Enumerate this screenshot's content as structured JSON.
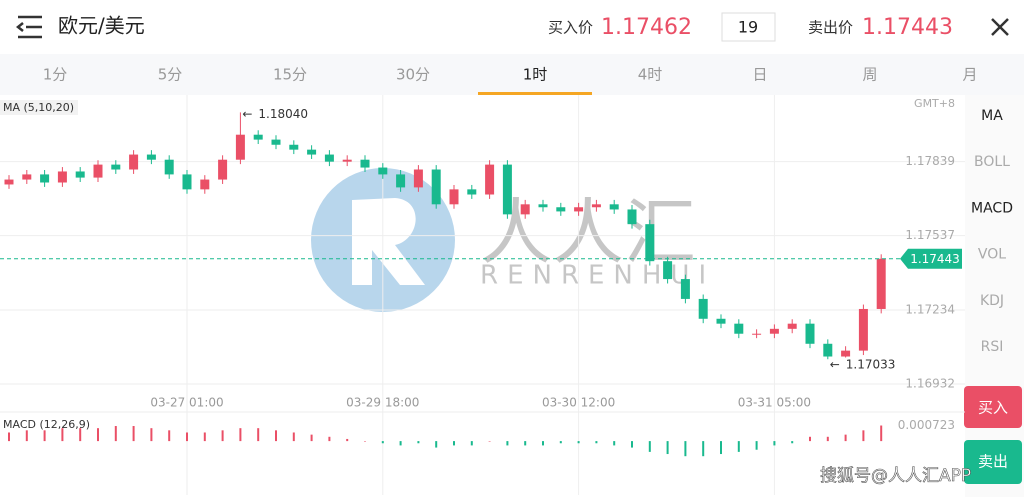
{
  "header": {
    "title": "欧元/美元",
    "bid_label": "买入价",
    "bid": "1.17462",
    "quantity": "19",
    "ask_label": "卖出价",
    "ask": "1.17443"
  },
  "tabs": [
    {
      "label": "1分"
    },
    {
      "label": "5分"
    },
    {
      "label": "15分"
    },
    {
      "label": "30分"
    },
    {
      "label": "1时",
      "active": true
    },
    {
      "label": "4时"
    },
    {
      "label": "日"
    },
    {
      "label": "周"
    },
    {
      "label": "月"
    }
  ],
  "indicators": [
    {
      "label": "MA",
      "active": true
    },
    {
      "label": "BOLL"
    },
    {
      "label": "MACD",
      "active": true
    },
    {
      "label": "VOL"
    },
    {
      "label": "KDJ"
    },
    {
      "label": "RSI"
    }
  ],
  "buttons": {
    "buy": "买入",
    "sell": "卖出"
  },
  "watermark": {
    "brand": "人人汇",
    "latin": "RENRENHUI",
    "footer": "搜狐号@人人汇APP"
  },
  "chart_data": {
    "type": "candlestick",
    "ma_label": "MA (5,10,20)",
    "timezone": "GMT+8",
    "up_color": "#ea4f66",
    "down_color": "#19b98e",
    "ylim": [
      1.16887,
      1.18111
    ],
    "yticks": [
      1.17839,
      1.17537,
      1.17234,
      1.16932
    ],
    "grid": true,
    "current_price": 1.17443,
    "max_annotation": {
      "value": 1.1804,
      "label": "1.18040"
    },
    "min_annotation": 1.17033,
    "categories": [
      null,
      null,
      null,
      null,
      null,
      null,
      null,
      null,
      null,
      null,
      "03-27 01:00",
      null,
      null,
      null,
      null,
      null,
      null,
      null,
      null,
      null,
      null,
      "03-29 18:00",
      null,
      null,
      null,
      null,
      null,
      null,
      null,
      null,
      null,
      null,
      "03-30 12:00",
      null,
      null,
      null,
      null,
      null,
      null,
      null,
      null,
      null,
      null,
      "03-31 05:00",
      null,
      null,
      null,
      null,
      null,
      null
    ],
    "open": [
      1.17746,
      1.17766,
      1.17787,
      1.17754,
      1.17799,
      1.17774,
      1.17827,
      1.17807,
      1.17868,
      1.17847,
      1.17787,
      1.17726,
      1.17766,
      1.17847,
      1.17949,
      1.17929,
      1.17908,
      1.17888,
      1.17868,
      1.17839,
      1.17847,
      1.17815,
      1.17787,
      1.17734,
      1.17807,
      1.17665,
      1.17726,
      1.17705,
      1.17827,
      1.17624,
      1.17665,
      1.17653,
      1.17636,
      1.17653,
      1.17665,
      1.17644,
      1.17584,
      1.17433,
      1.1736,
      1.17279,
      1.17198,
      1.17178,
      1.17137,
      1.17137,
      1.17157,
      1.17178,
      1.17096,
      1.17044,
      1.17068,
      1.17238
    ],
    "close": [
      1.17766,
      1.17787,
      1.17754,
      1.17799,
      1.17774,
      1.17827,
      1.17807,
      1.17868,
      1.17847,
      1.17787,
      1.17726,
      1.17766,
      1.17847,
      1.17949,
      1.17929,
      1.17908,
      1.17888,
      1.17868,
      1.17839,
      1.17847,
      1.17815,
      1.17787,
      1.17734,
      1.17807,
      1.17665,
      1.17726,
      1.17705,
      1.17827,
      1.17624,
      1.17665,
      1.17653,
      1.17636,
      1.17653,
      1.17665,
      1.17644,
      1.17584,
      1.17433,
      1.1736,
      1.17279,
      1.17198,
      1.17178,
      1.17137,
      1.17137,
      1.17157,
      1.17178,
      1.17096,
      1.17044,
      1.17068,
      1.17238,
      1.17443
    ],
    "high": [
      1.17784,
      1.17805,
      1.17805,
      1.17817,
      1.17817,
      1.17845,
      1.17845,
      1.17886,
      1.17886,
      1.17865,
      1.17805,
      1.17784,
      1.17865,
      1.1804,
      1.17967,
      1.17947,
      1.17926,
      1.17906,
      1.17886,
      1.17865,
      1.17865,
      1.17833,
      1.17805,
      1.17825,
      1.17825,
      1.17744,
      1.17744,
      1.17845,
      1.17845,
      1.17683,
      1.17683,
      1.17671,
      1.17671,
      1.17683,
      1.17683,
      1.17662,
      1.17602,
      1.17451,
      1.17378,
      1.17297,
      1.17216,
      1.17196,
      1.17155,
      1.17175,
      1.17196,
      1.17196,
      1.17114,
      1.17086,
      1.17256,
      1.17461
    ],
    "low": [
      1.17728,
      1.17748,
      1.17736,
      1.17736,
      1.17756,
      1.17756,
      1.17789,
      1.17789,
      1.17829,
      1.17769,
      1.17708,
      1.17708,
      1.17748,
      1.17829,
      1.17911,
      1.1789,
      1.1787,
      1.1785,
      1.17821,
      1.17821,
      1.17797,
      1.17769,
      1.17716,
      1.17716,
      1.17647,
      1.17647,
      1.17687,
      1.17687,
      1.17606,
      1.17606,
      1.17635,
      1.17618,
      1.17618,
      1.17635,
      1.17626,
      1.17566,
      1.17415,
      1.17342,
      1.17261,
      1.1718,
      1.1716,
      1.17119,
      1.17119,
      1.17119,
      1.17139,
      1.17078,
      1.17033,
      1.1704,
      1.1705,
      1.1722
    ],
    "macd": {
      "label": "MACD (12,26,9)",
      "ylim": [
        -0.0025,
        0.00135
      ],
      "yticks": [
        0.000723
      ],
      "values": [
        0.0004,
        0.0005,
        0.0005,
        0.0006,
        0.0006,
        0.0006,
        0.0007,
        0.0007,
        0.0006,
        0.0005,
        0.0004,
        0.0004,
        0.0005,
        0.0006,
        0.0006,
        0.0005,
        0.0004,
        0.0003,
        0.0002,
        0.0001,
        0,
        -0.0001,
        -0.0002,
        -0.0001,
        -0.0003,
        -0.0002,
        -0.0002,
        0,
        -0.0002,
        -0.0002,
        -0.0002,
        -0.0001,
        -0.0001,
        -0.0001,
        -0.0002,
        -0.0003,
        -0.0005,
        -0.0006,
        -0.0007,
        -0.0007,
        -0.0006,
        -0.0005,
        -0.0004,
        -0.0002,
        -0.0001,
        0.0002,
        0.0002,
        0.0003,
        0.0005,
        0.000723
      ]
    }
  }
}
